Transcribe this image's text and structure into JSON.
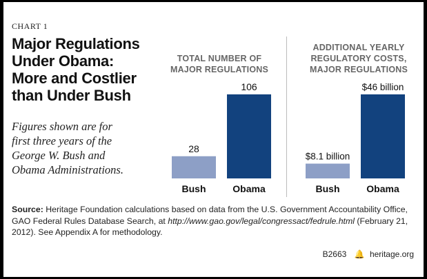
{
  "chart_label": "CHART 1",
  "headline_lines": [
    "Major Regulations",
    "Under Obama:",
    "More and Costlier",
    "than Under Bush"
  ],
  "subtitle_lines": [
    "Figures shown are for",
    "first three years of the",
    "George W. Bush and",
    "Obama Administrations."
  ],
  "colors": {
    "bush_bar": "#8d9fc6",
    "obama_bar": "#12427e",
    "panel_title": "#666666"
  },
  "chart_data": [
    {
      "type": "bar",
      "title_lines": [
        "TOTAL NUMBER OF",
        "MAJOR REGULATIONS"
      ],
      "categories": [
        "Bush",
        "Obama"
      ],
      "values": [
        28,
        106
      ],
      "value_labels": [
        "28",
        "106"
      ],
      "ylim": [
        0,
        106
      ],
      "xlabel": "",
      "ylabel": ""
    },
    {
      "type": "bar",
      "title_lines": [
        "ADDITIONAL YEARLY",
        "REGULATORY COSTS,",
        "MAJOR REGULATIONS"
      ],
      "categories": [
        "Bush",
        "Obama"
      ],
      "values": [
        8.1,
        46
      ],
      "value_labels": [
        "$8.1 billion",
        "$46 billion"
      ],
      "ylim": [
        0,
        46
      ],
      "xlabel": "",
      "ylabel": ""
    }
  ],
  "source": {
    "label": "Source:",
    "text_before_url": "Heritage Foundation calculations based on data from the U.S. Government Accountability Office, GAO Federal Rules Database Search, at",
    "url": "http://www.gao.gov/legal/congressact/fedrule.html",
    "text_after_url": "(February 21, 2012). See Appendix A for methodology."
  },
  "footer": {
    "code": "B2663",
    "site": "heritage.org"
  }
}
